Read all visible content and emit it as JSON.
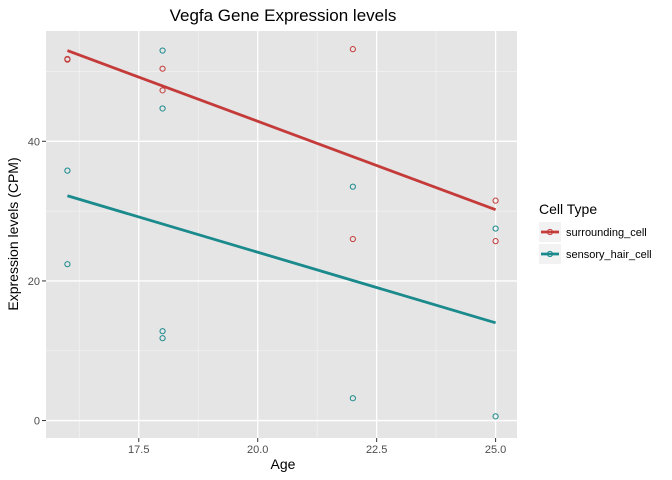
{
  "chart_data": {
    "type": "scatter",
    "title": "Vegfa Gene Expression levels",
    "xlabel": "Age",
    "ylabel": "Expression levels (CPM)",
    "xlim": [
      15.55,
      25.45
    ],
    "ylim": [
      -2.5,
      55.8
    ],
    "x_ticks": [
      17.5,
      20.0,
      22.5,
      25.0
    ],
    "x_tick_labels": [
      "17.5",
      "20.0",
      "22.5",
      "25.0"
    ],
    "y_ticks": [
      0,
      20,
      40
    ],
    "y_tick_labels": [
      "0",
      "20",
      "40"
    ],
    "grid": true,
    "legend": {
      "title": "Cell Type",
      "position": "right"
    },
    "series": [
      {
        "name": "surrounding_cell",
        "color": "#c43b3a",
        "points": [
          {
            "x": 16,
            "y": 51.7
          },
          {
            "x": 16,
            "y": 51.8
          },
          {
            "x": 18,
            "y": 50.4
          },
          {
            "x": 18,
            "y": 47.3
          },
          {
            "x": 22,
            "y": 53.2
          },
          {
            "x": 22,
            "y": 26.0
          },
          {
            "x": 25,
            "y": 31.5
          },
          {
            "x": 25,
            "y": 25.7
          }
        ],
        "trend": [
          {
            "x": 16,
            "y": 53.0
          },
          {
            "x": 25,
            "y": 30.2
          }
        ]
      },
      {
        "name": "sensory_hair_cell",
        "color": "#1a8a8c",
        "points": [
          {
            "x": 16,
            "y": 35.8
          },
          {
            "x": 16,
            "y": 22.4
          },
          {
            "x": 18,
            "y": 53.0
          },
          {
            "x": 18,
            "y": 44.7
          },
          {
            "x": 18,
            "y": 12.8
          },
          {
            "x": 18,
            "y": 11.8
          },
          {
            "x": 22,
            "y": 33.5
          },
          {
            "x": 22,
            "y": 3.2
          },
          {
            "x": 25,
            "y": 27.5
          },
          {
            "x": 25,
            "y": 0.6
          }
        ],
        "trend": [
          {
            "x": 16,
            "y": 32.2
          },
          {
            "x": 25,
            "y": 14.0
          }
        ]
      }
    ]
  }
}
